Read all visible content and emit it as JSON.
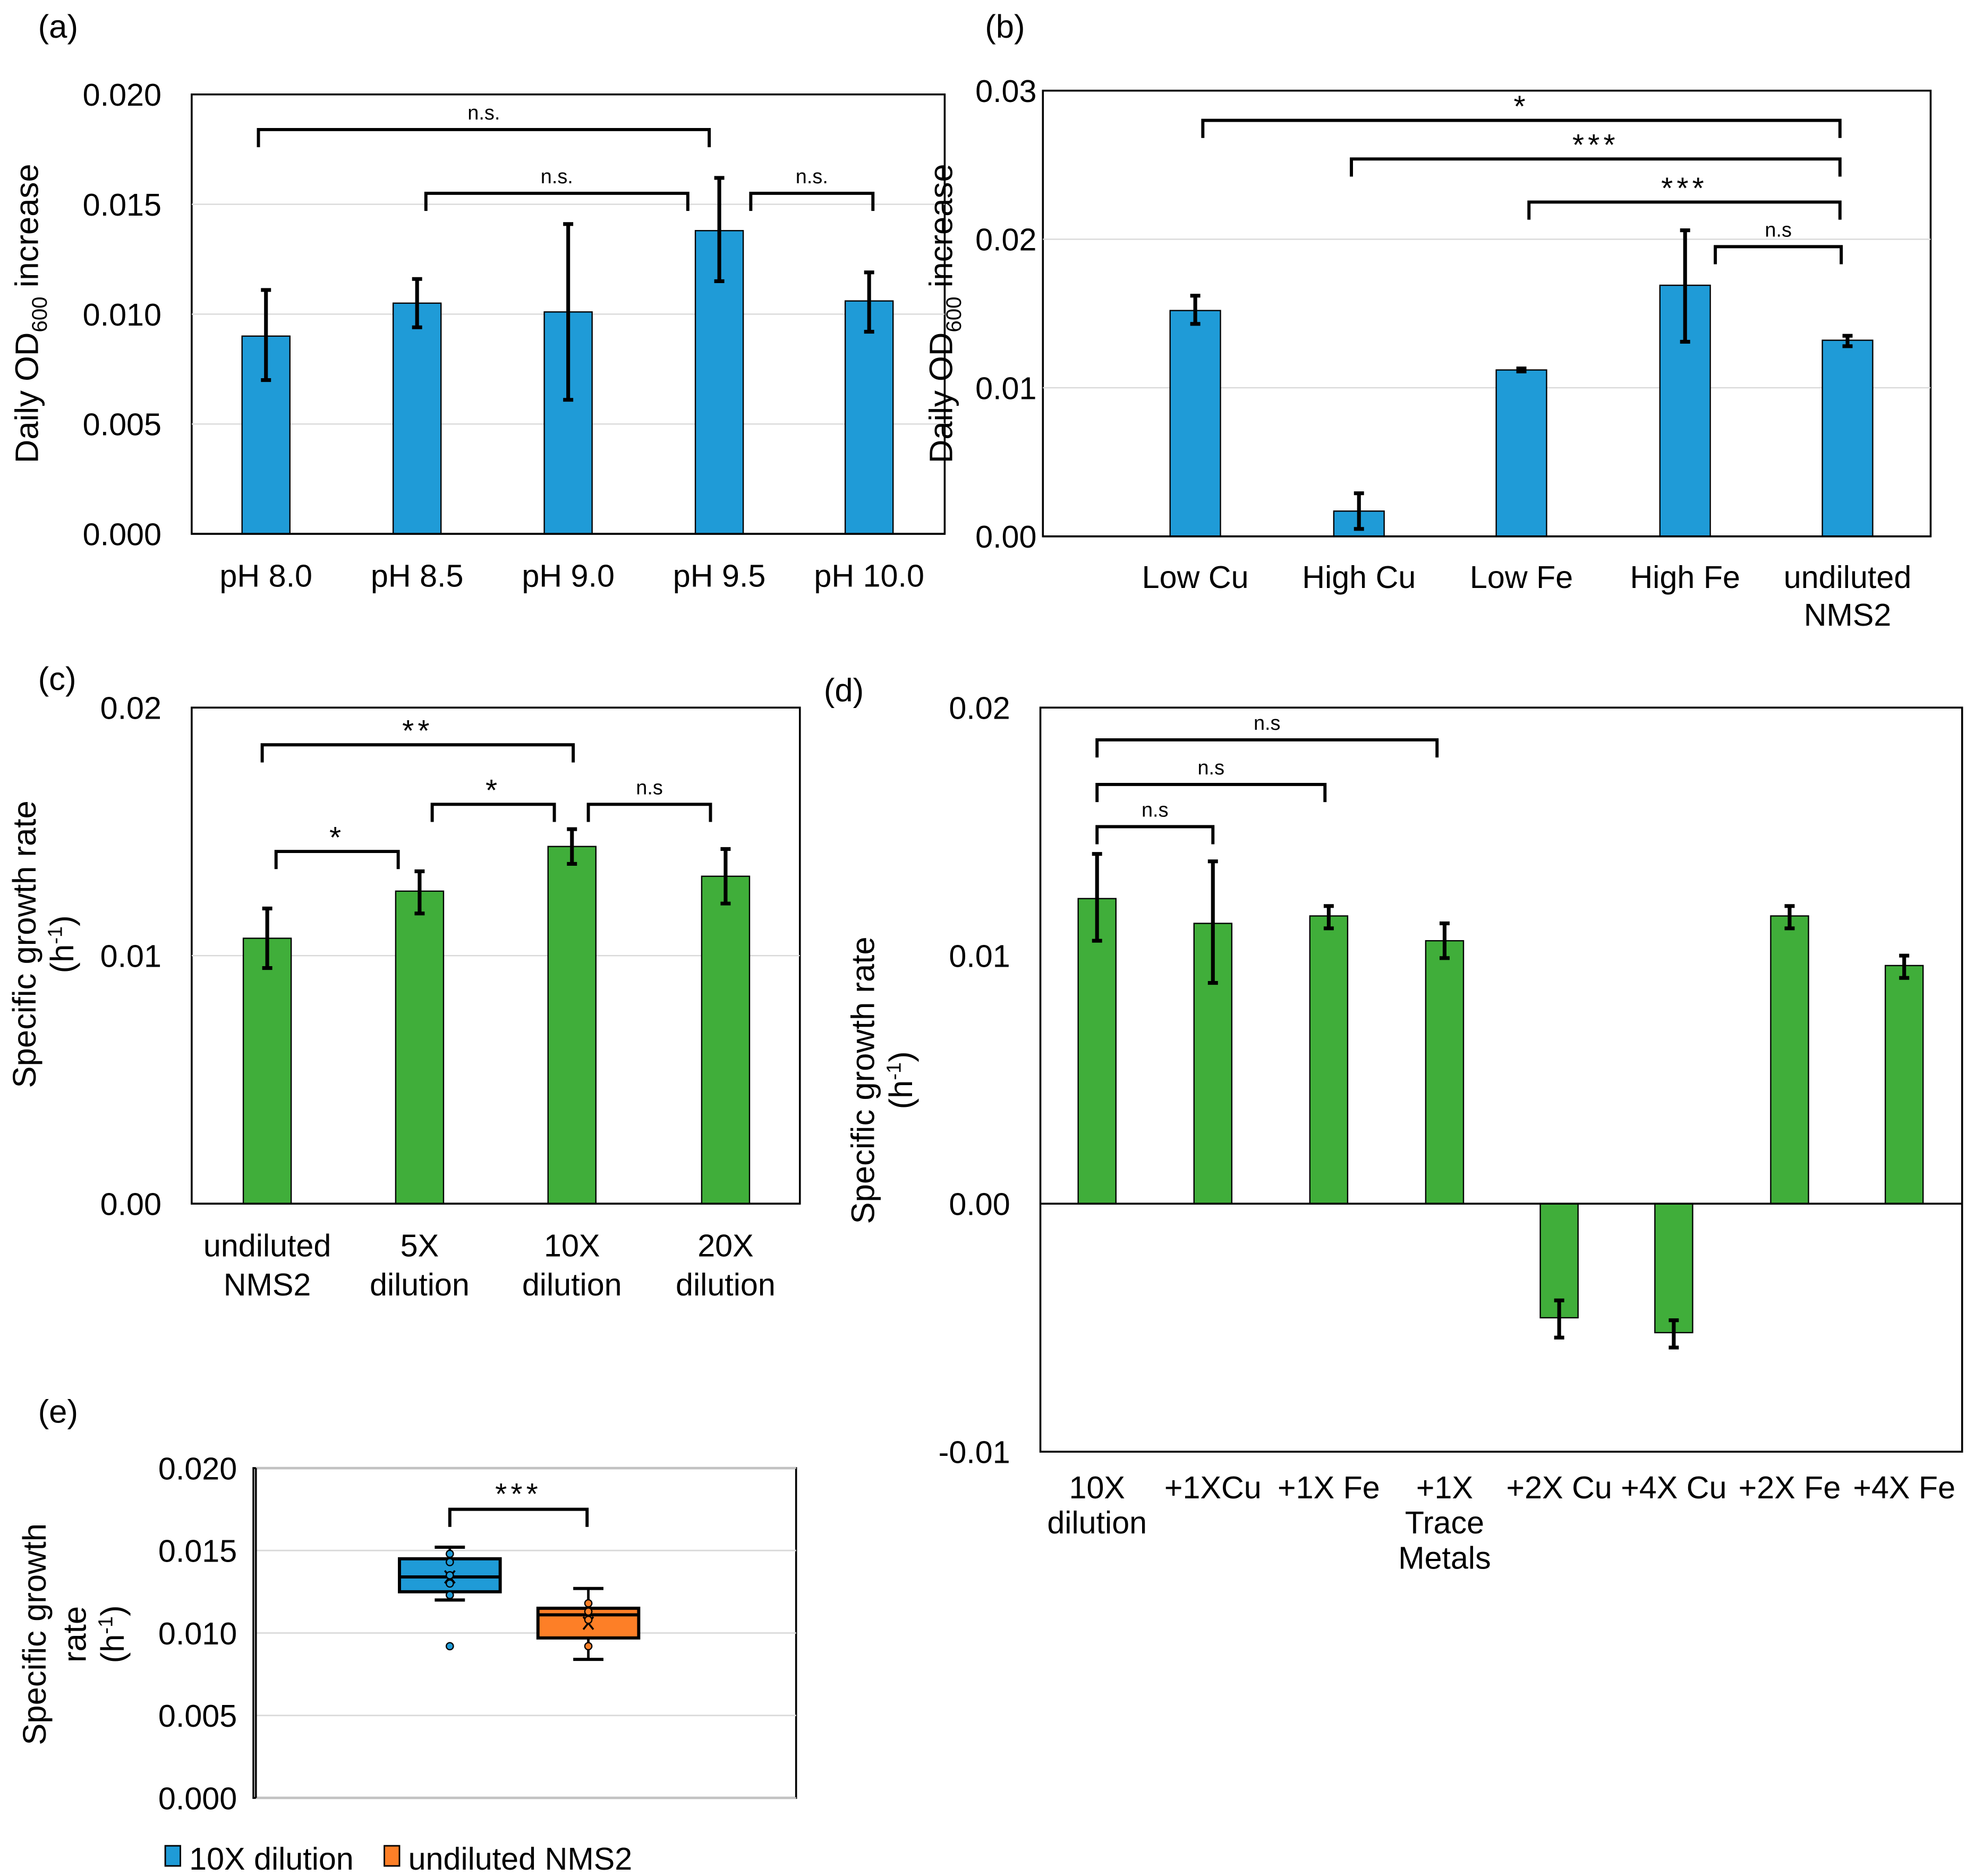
{
  "colors": {
    "blue": "#1f9bd7",
    "green": "#40ae3a",
    "orange": "#fd7f27",
    "grid": "#d9d9d9"
  },
  "chart_data": [
    {
      "panel": "(a)",
      "type": "bar",
      "categories": [
        [
          "pH 8.0"
        ],
        [
          "pH 8.5"
        ],
        [
          "pH 9.0"
        ],
        [
          "pH 9.5"
        ],
        [
          "pH 10.0"
        ]
      ],
      "values": [
        0.009,
        0.0105,
        0.0101,
        0.0138,
        0.0106
      ],
      "error_low": [
        0.007,
        0.0094,
        0.0061,
        0.0115,
        0.0092
      ],
      "error_high": [
        0.0111,
        0.0116,
        0.0141,
        0.0162,
        0.0119
      ],
      "ylim": [
        0,
        0.02
      ],
      "yticks": [
        "0.000",
        "0.005",
        "0.010",
        "0.015",
        "0.020"
      ],
      "ylabel": [
        "Daily OD",
        "600",
        " increase"
      ],
      "color": "blue",
      "grid": true,
      "brackets": [
        {
          "from": 0,
          "to": 3,
          "y": 0.0184,
          "label": "n.s."
        },
        {
          "from": 1,
          "to": 3,
          "y": 0.0155,
          "label": "n.s."
        },
        {
          "from": 3,
          "to": 4,
          "y": 0.0155,
          "label": "n.s."
        }
      ]
    },
    {
      "panel": "(b)",
      "type": "bar",
      "categories": [
        [
          "Low Cu"
        ],
        [
          "High Cu"
        ],
        [
          "Low Fe"
        ],
        [
          "High Fe"
        ],
        [
          "undiluted",
          "NMS2"
        ]
      ],
      "values": [
        0.0152,
        0.0017,
        0.0112,
        0.0169,
        0.0132
      ],
      "error_low": [
        0.0143,
        0.0005,
        0.0111,
        0.0131,
        0.0128
      ],
      "error_high": [
        0.0162,
        0.0029,
        0.0113,
        0.0206,
        0.0135
      ],
      "ylim": [
        0,
        0.03
      ],
      "yticks": [
        "0.00",
        "0.01",
        "0.02",
        "0.03"
      ],
      "ylabel": [
        "Daily OD",
        "600",
        " increase"
      ],
      "color": "blue",
      "grid": true,
      "brackets": [
        {
          "from": 0,
          "to": 4,
          "y": 0.028,
          "label": "*"
        },
        {
          "from": 1,
          "to": 4,
          "y": 0.0254,
          "label": "***"
        },
        {
          "from": 2,
          "to": 4,
          "y": 0.0225,
          "label": "***"
        },
        {
          "from": 3,
          "to": 4,
          "y": 0.0195,
          "label": "n.s"
        }
      ]
    },
    {
      "panel": "(c)",
      "type": "bar",
      "categories": [
        [
          "undiluted",
          "NMS2"
        ],
        [
          "5X",
          "dilution"
        ],
        [
          "10X",
          "dilution"
        ],
        [
          "20X",
          "dilution"
        ]
      ],
      "values": [
        0.0107,
        0.0126,
        0.0144,
        0.0132
      ],
      "error_low": [
        0.0095,
        0.0117,
        0.0137,
        0.0121
      ],
      "error_high": [
        0.0119,
        0.0134,
        0.0151,
        0.0143
      ],
      "ylim": [
        0,
        0.02
      ],
      "yticks": [
        "0.00",
        "0.01",
        "0.02"
      ],
      "ylabel": [
        "Specific growth rate",
        "(h",
        "-1",
        ")"
      ],
      "color": "green",
      "grid": true,
      "brackets": [
        {
          "from": 0,
          "to": 2,
          "y": 0.0185,
          "label": "**"
        },
        {
          "from": 1,
          "to": 2,
          "y": 0.0161,
          "label": "*"
        },
        {
          "from": 2,
          "to": 3,
          "y": 0.0161,
          "label": "n.s"
        },
        {
          "from": 0,
          "to": 1,
          "y": 0.0142,
          "label": "*"
        }
      ]
    },
    {
      "panel": "(d)",
      "type": "bar",
      "categories": [
        [
          "10X",
          "dilution"
        ],
        [
          "+1XCu"
        ],
        [
          "+1X Fe"
        ],
        [
          "+1X",
          "Trace",
          "Metals"
        ],
        [
          "+2X Cu"
        ],
        [
          "+4X Cu"
        ],
        [
          "+2X Fe"
        ],
        [
          "+4X Fe"
        ]
      ],
      "values": [
        0.0123,
        0.0113,
        0.0116,
        0.0106,
        -0.0046,
        -0.0052,
        0.0116,
        0.0096
      ],
      "error_low": [
        0.0106,
        0.0089,
        0.0111,
        0.0099,
        -0.0054,
        -0.0058,
        0.0111,
        0.0091
      ],
      "error_high": [
        0.0141,
        0.0138,
        0.012,
        0.0113,
        -0.0039,
        -0.0047,
        0.012,
        0.01
      ],
      "ylim": [
        -0.01,
        0.02
      ],
      "yticks": [
        "-0.01",
        "0.00",
        "0.01",
        "0.02"
      ],
      "ylabel": [
        "Specific growth rate",
        "(h",
        "-1",
        ")"
      ],
      "color": "green",
      "grid": false,
      "brackets": [
        {
          "from": 0,
          "to": 3,
          "y": 0.0187,
          "label": "n.s"
        },
        {
          "from": 0,
          "to": 2,
          "y": 0.0169,
          "label": "n.s"
        },
        {
          "from": 0,
          "to": 1,
          "y": 0.0152,
          "label": "n.s"
        }
      ]
    },
    {
      "panel": "(e)",
      "type": "box",
      "ylim": [
        0,
        0.02
      ],
      "yticks": [
        "0.000",
        "0.005",
        "0.010",
        "0.015",
        "0.020"
      ],
      "ylabel": [
        "Specific growth",
        "rate",
        "(h",
        "-1",
        ")"
      ],
      "grid": true,
      "series": [
        {
          "name": "10X dilution",
          "color": "blue",
          "q1": 0.0125,
          "median": 0.0134,
          "q3": 0.0145,
          "whisker_low": 0.012,
          "whisker_high": 0.0152,
          "mean": 0.0134,
          "points": [
            0.0148,
            0.0143,
            0.0135,
            0.013,
            0.0123
          ],
          "outliers": [
            0.0092
          ]
        },
        {
          "name": "undiluted NMS2",
          "color": "orange",
          "q1": 0.0097,
          "median": 0.0111,
          "q3": 0.0115,
          "whisker_low": 0.0084,
          "whisker_high": 0.0127,
          "mean": 0.0106,
          "points": [
            0.0118,
            0.0113,
            0.0108,
            0.0092
          ],
          "outliers": []
        }
      ],
      "brackets": [
        {
          "from": 0,
          "to": 1,
          "y": 0.0175,
          "label": "***"
        }
      ]
    }
  ]
}
